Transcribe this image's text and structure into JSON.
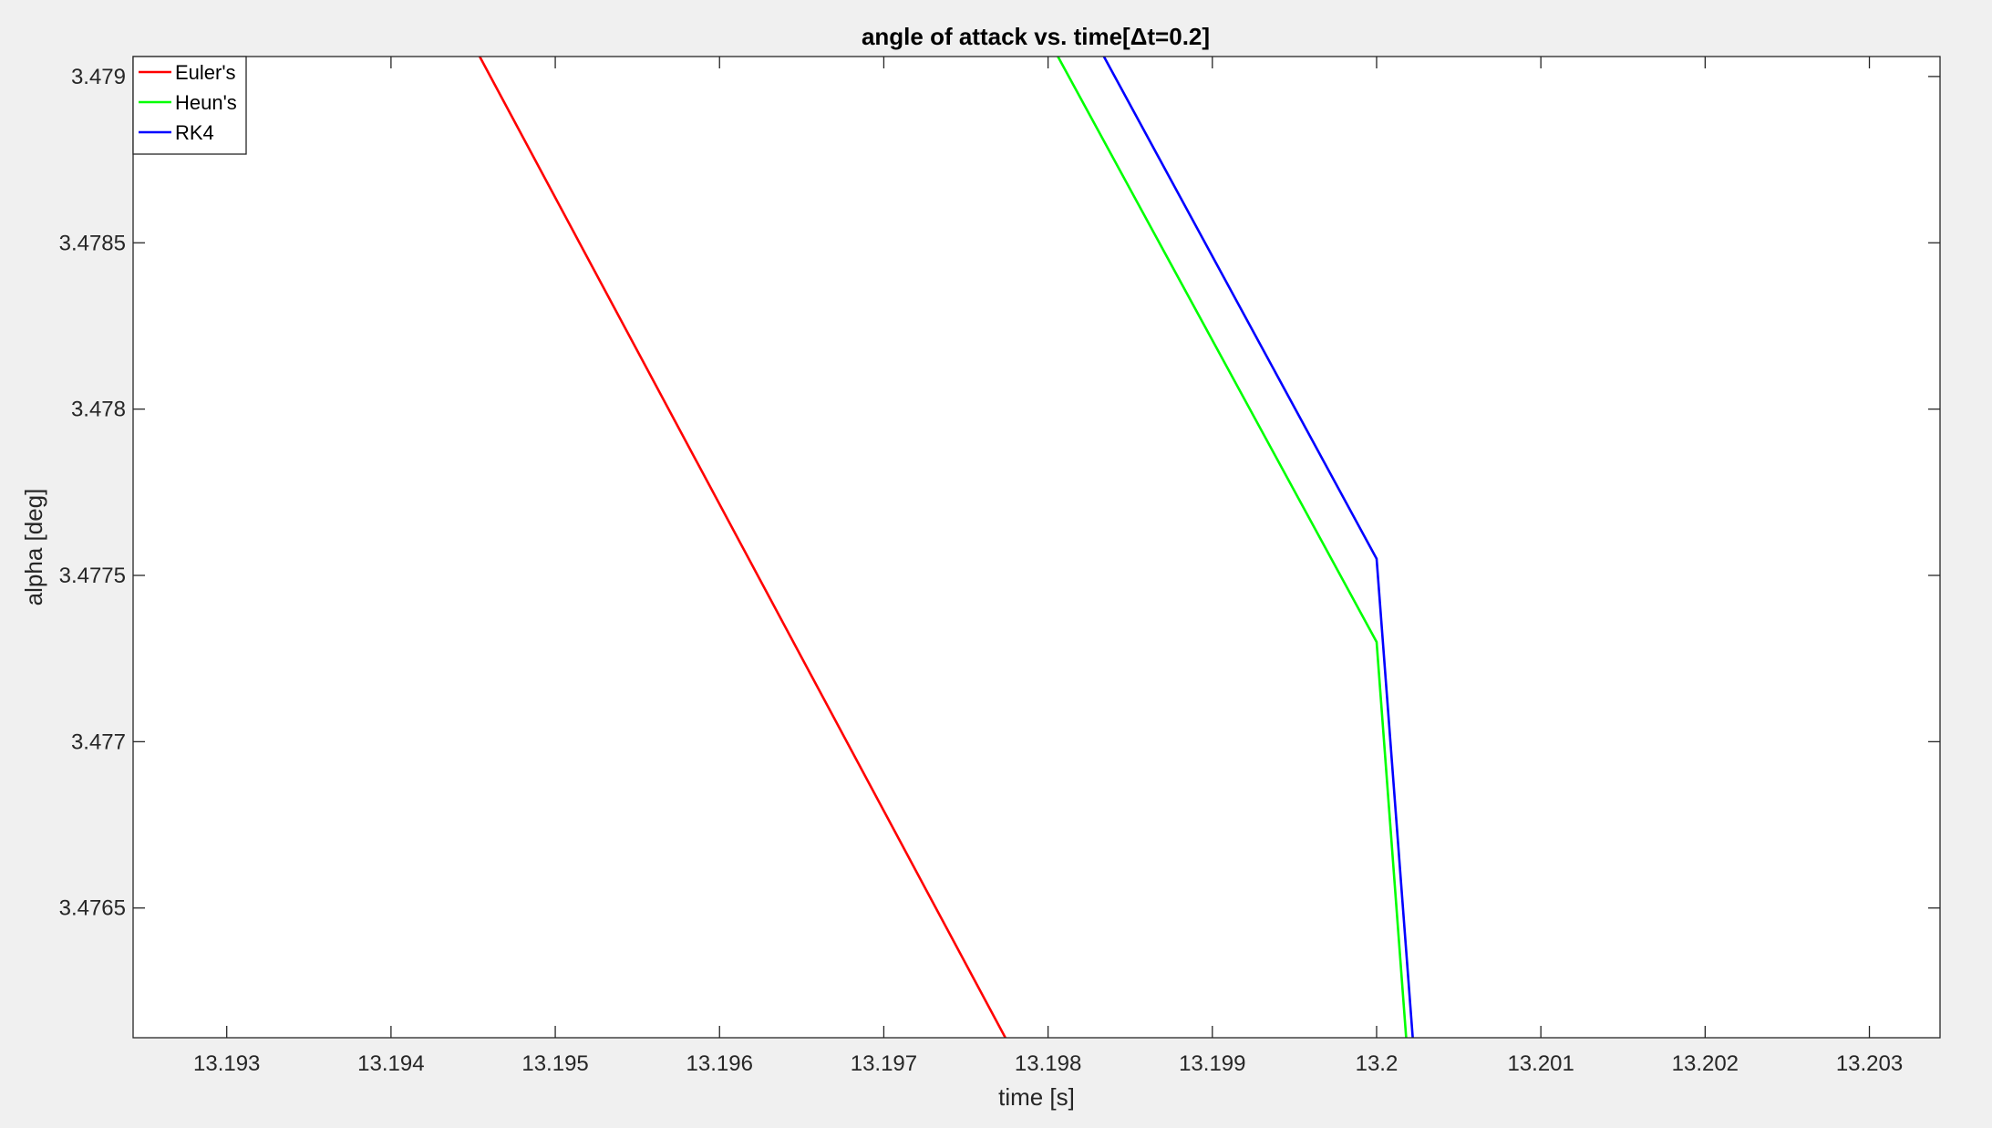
{
  "chart_data": {
    "type": "line",
    "title": "angle of attack vs. time[Δt=0.2]",
    "xlabel": "time [s]",
    "ylabel": "alpha [deg]",
    "xlim": [
      13.19243,
      13.20343
    ],
    "ylim": [
      3.47611,
      3.47906
    ],
    "xticks": [
      13.193,
      13.194,
      13.195,
      13.196,
      13.197,
      13.198,
      13.199,
      13.2,
      13.201,
      13.202,
      13.203
    ],
    "xtick_labels": [
      "13.193",
      "13.194",
      "13.195",
      "13.196",
      "13.197",
      "13.198",
      "13.199",
      "13.2",
      "13.201",
      "13.202",
      "13.203"
    ],
    "yticks": [
      3.4765,
      3.477,
      3.4775,
      3.478,
      3.4785,
      3.479
    ],
    "ytick_labels": [
      "3.4765",
      "3.477",
      "3.4775",
      "3.478",
      "3.4785",
      "3.479"
    ],
    "grid": false,
    "legend_position": "top-left",
    "series": [
      {
        "name": "Euler's",
        "color": "#ff0000",
        "x": [
          13.19454,
          13.19774
        ],
        "y": [
          3.47906,
          3.47611
        ]
      },
      {
        "name": "Heun's",
        "color": "#00ff00",
        "x": [
          13.19806,
          13.2,
          13.20018
        ],
        "y": [
          3.47906,
          3.4773,
          3.47611
        ]
      },
      {
        "name": "RK4",
        "color": "#0000ff",
        "x": [
          13.19834,
          13.2,
          13.20022
        ],
        "y": [
          3.47906,
          3.47755,
          3.47611
        ]
      }
    ]
  }
}
